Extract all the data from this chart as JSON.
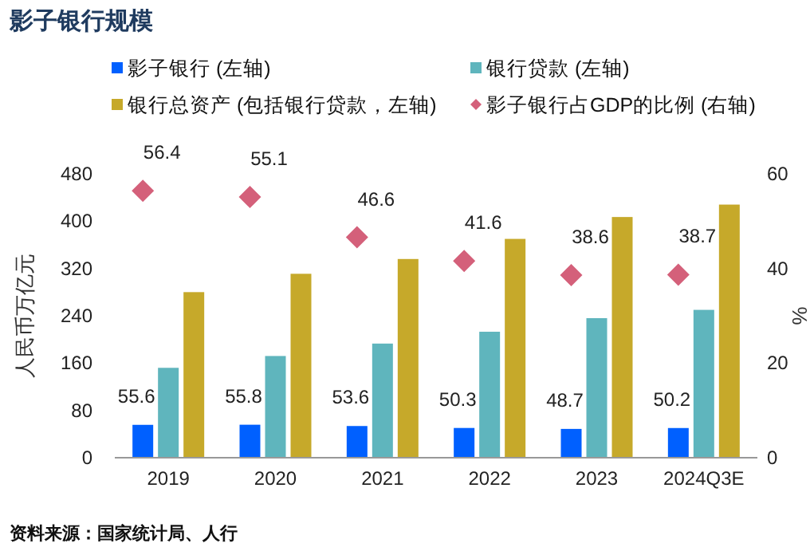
{
  "chart_data": {
    "type": "bar",
    "title": "影子银行规模",
    "categories": [
      "2019",
      "2020",
      "2021",
      "2022",
      "2023",
      "2024Q3E"
    ],
    "series": [
      {
        "name": "影子银行 (左轴)",
        "color": "#0060ff",
        "values": [
          55.6,
          55.8,
          53.6,
          50.3,
          48.7,
          50.2
        ],
        "value_labels": [
          "55.6",
          "55.8",
          "53.6",
          "50.3",
          "48.7",
          "50.2"
        ]
      },
      {
        "name": "银行贷款 (左轴)",
        "color": "#5fb5bd",
        "values": [
          152,
          172,
          193,
          213,
          236,
          250
        ]
      },
      {
        "name": "银行总资产 (包括银行贷款，左轴)",
        "color": "#c6a92a",
        "values": [
          280,
          311,
          336,
          370,
          407,
          428
        ]
      },
      {
        "name": "影子银行占GDP的比例 (右轴)",
        "type": "scatter",
        "axis": "y2",
        "marker": "diamond",
        "color": "#d4607a",
        "values": [
          56.4,
          55.1,
          46.6,
          41.6,
          38.6,
          38.7
        ],
        "value_labels": [
          "56.4",
          "55.1",
          "46.6",
          "41.6",
          "38.6",
          "38.7"
        ]
      }
    ],
    "ylabel": "人民币万亿元",
    "y2label": "%",
    "ylim": [
      0,
      480
    ],
    "yticks": [
      0,
      80,
      160,
      240,
      320,
      400,
      480
    ],
    "y2lim": [
      0,
      60
    ],
    "y2ticks": [
      0,
      20,
      40,
      60
    ],
    "legend": "top",
    "grid": false,
    "annotations": [
      "资料来源：国家统计局、人行"
    ]
  }
}
